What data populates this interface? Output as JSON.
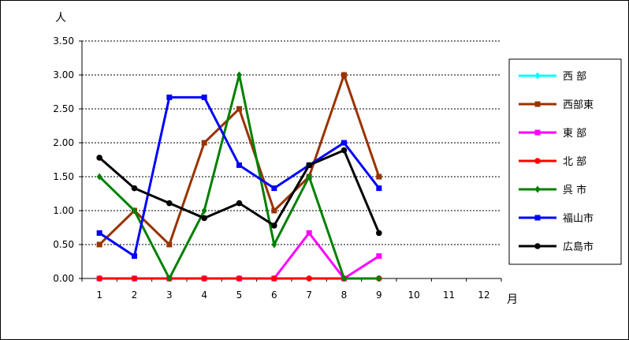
{
  "chart_data": {
    "type": "line",
    "y_unit_label": "人",
    "x_unit_label": "月",
    "categories": [
      "1",
      "2",
      "3",
      "4",
      "5",
      "6",
      "7",
      "8",
      "9",
      "10",
      "11",
      "12"
    ],
    "y_tick_labels": [
      "0.00",
      "0.50",
      "1.00",
      "1.50",
      "2.00",
      "2.50",
      "3.00",
      "3.50"
    ],
    "ylim": [
      0,
      3.5
    ],
    "grid": "horizontal-dashed",
    "legend_position": "right",
    "series": [
      {
        "name": "西 部",
        "color": "#00ffff",
        "marker": "diamond",
        "values": [
          0,
          0,
          0,
          0,
          0,
          0,
          0,
          0,
          0,
          null,
          null,
          null
        ]
      },
      {
        "name": "西部東",
        "color": "#993300",
        "marker": "square",
        "values": [
          0.5,
          1.0,
          0.5,
          2.0,
          2.5,
          1.0,
          1.5,
          3.0,
          1.5,
          null,
          null,
          null
        ]
      },
      {
        "name": "東 部",
        "color": "#ff00ff",
        "marker": "square",
        "values": [
          0,
          0,
          0,
          0,
          0,
          0,
          0.67,
          0,
          0.33,
          null,
          null,
          null
        ]
      },
      {
        "name": "北 部",
        "color": "#ff0000",
        "marker": "circle",
        "values": [
          0,
          0,
          0,
          0,
          0,
          0,
          0,
          0,
          0,
          null,
          null,
          null
        ]
      },
      {
        "name": "呉 市",
        "color": "#008000",
        "marker": "diamond",
        "values": [
          1.5,
          1.0,
          0,
          1.0,
          3.0,
          0.5,
          1.5,
          0,
          0,
          null,
          null,
          null
        ]
      },
      {
        "name": "福山市",
        "color": "#0000ff",
        "marker": "square",
        "values": [
          0.67,
          0.33,
          2.67,
          2.67,
          1.67,
          1.33,
          1.67,
          2.0,
          1.33,
          null,
          null,
          null
        ]
      },
      {
        "name": "広島市",
        "color": "#000000",
        "marker": "circle",
        "values": [
          1.78,
          1.33,
          1.11,
          0.89,
          1.11,
          0.78,
          1.67,
          1.89,
          0.67,
          null,
          null,
          null
        ]
      }
    ]
  }
}
